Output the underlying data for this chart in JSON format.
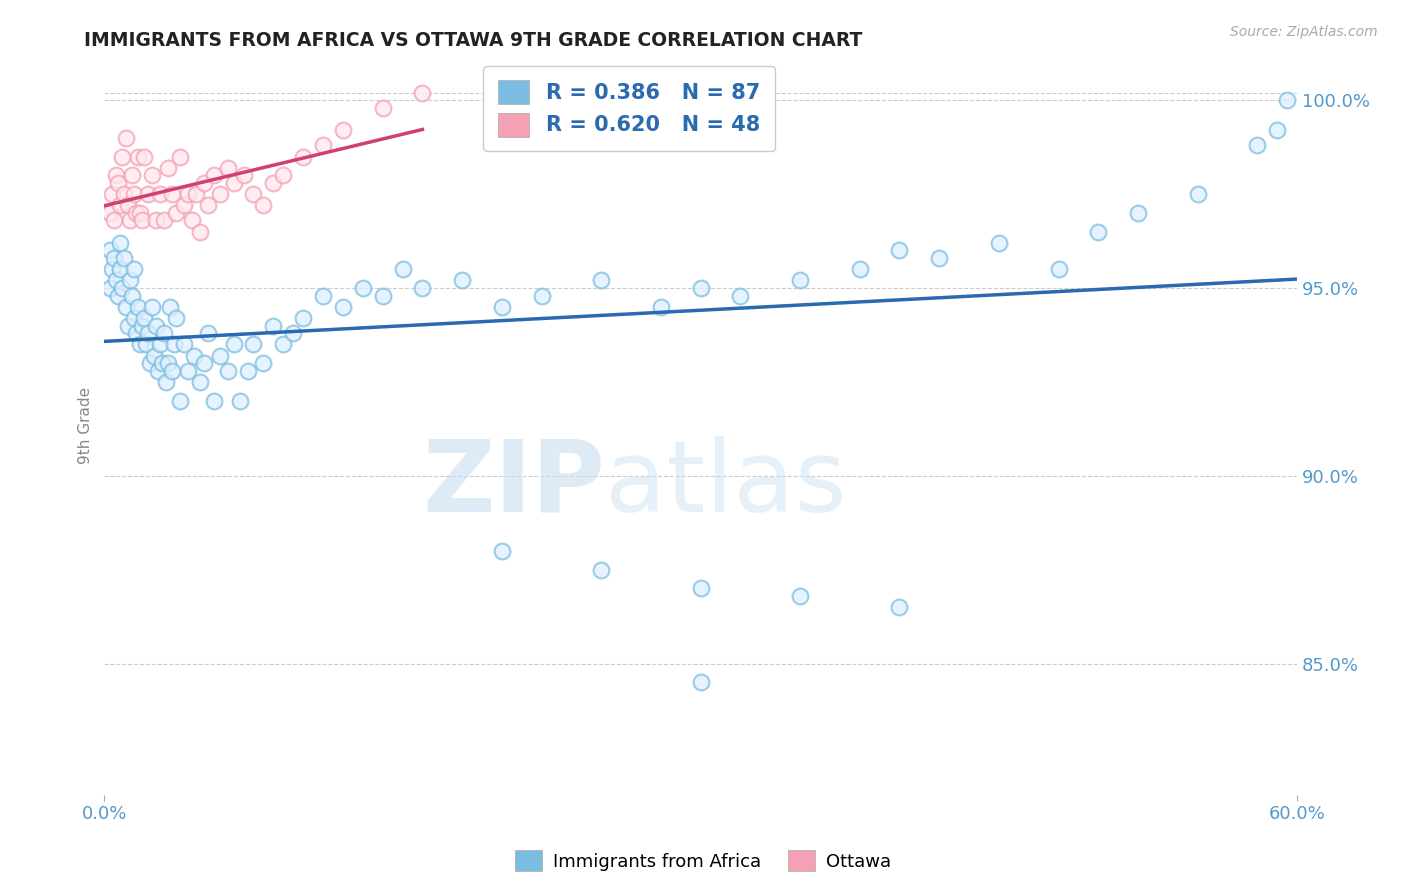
{
  "title": "IMMIGRANTS FROM AFRICA VS OTTAWA 9TH GRADE CORRELATION CHART",
  "source": "Source: ZipAtlas.com",
  "ylabel": "9th Grade",
  "xlim": [
    0.0,
    0.6
  ],
  "ylim": [
    0.815,
    1.012
  ],
  "yticks": [
    0.85,
    0.9,
    0.95,
    1.0
  ],
  "yticklabels": [
    "85.0%",
    "90.0%",
    "95.0%",
    "100.0%"
  ],
  "legend1_R": "0.386",
  "legend1_N": "87",
  "legend2_R": "0.620",
  "legend2_N": "48",
  "legend1_label": "Immigrants from Africa",
  "legend2_label": "Ottawa",
  "blue_color": "#7bbde0",
  "pink_color": "#f4a0b5",
  "trendline_blue": "#2a6ab0",
  "trendline_pink": "#d04070",
  "background_color": "#ffffff",
  "grid_color": "#aaaaaa",
  "title_color": "#222222",
  "axis_label_color": "#888888",
  "tick_color": "#5599cc",
  "legend_R_color": "#2a6ab0",
  "watermark_zip": "ZIP",
  "watermark_atlas": "atlas",
  "blue_x": [
    0.003,
    0.003,
    0.004,
    0.005,
    0.006,
    0.007,
    0.008,
    0.008,
    0.009,
    0.01,
    0.011,
    0.012,
    0.013,
    0.014,
    0.015,
    0.015,
    0.016,
    0.017,
    0.018,
    0.019,
    0.02,
    0.021,
    0.022,
    0.023,
    0.024,
    0.025,
    0.026,
    0.027,
    0.028,
    0.029,
    0.03,
    0.031,
    0.032,
    0.033,
    0.034,
    0.035,
    0.036,
    0.038,
    0.04,
    0.042,
    0.045,
    0.048,
    0.05,
    0.052,
    0.055,
    0.058,
    0.062,
    0.065,
    0.068,
    0.072,
    0.075,
    0.08,
    0.085,
    0.09,
    0.095,
    0.1,
    0.11,
    0.12,
    0.13,
    0.14,
    0.15,
    0.16,
    0.18,
    0.2,
    0.22,
    0.25,
    0.28,
    0.3,
    0.32,
    0.35,
    0.38,
    0.4,
    0.42,
    0.45,
    0.48,
    0.5,
    0.52,
    0.55,
    0.2,
    0.25,
    0.3,
    0.35,
    0.4,
    0.3,
    0.58,
    0.59,
    0.595
  ],
  "blue_y": [
    0.95,
    0.96,
    0.955,
    0.958,
    0.952,
    0.948,
    0.962,
    0.955,
    0.95,
    0.958,
    0.945,
    0.94,
    0.952,
    0.948,
    0.942,
    0.955,
    0.938,
    0.945,
    0.935,
    0.94,
    0.942,
    0.935,
    0.938,
    0.93,
    0.945,
    0.932,
    0.94,
    0.928,
    0.935,
    0.93,
    0.938,
    0.925,
    0.93,
    0.945,
    0.928,
    0.935,
    0.942,
    0.92,
    0.935,
    0.928,
    0.932,
    0.925,
    0.93,
    0.938,
    0.92,
    0.932,
    0.928,
    0.935,
    0.92,
    0.928,
    0.935,
    0.93,
    0.94,
    0.935,
    0.938,
    0.942,
    0.948,
    0.945,
    0.95,
    0.948,
    0.955,
    0.95,
    0.952,
    0.945,
    0.948,
    0.952,
    0.945,
    0.95,
    0.948,
    0.952,
    0.955,
    0.96,
    0.958,
    0.962,
    0.955,
    0.965,
    0.97,
    0.975,
    0.88,
    0.875,
    0.87,
    0.868,
    0.865,
    0.845,
    0.988,
    0.992,
    1.0
  ],
  "pink_x": [
    0.003,
    0.004,
    0.005,
    0.006,
    0.007,
    0.008,
    0.009,
    0.01,
    0.011,
    0.012,
    0.013,
    0.014,
    0.015,
    0.016,
    0.017,
    0.018,
    0.019,
    0.02,
    0.022,
    0.024,
    0.026,
    0.028,
    0.03,
    0.032,
    0.034,
    0.036,
    0.038,
    0.04,
    0.042,
    0.044,
    0.046,
    0.048,
    0.05,
    0.052,
    0.055,
    0.058,
    0.062,
    0.065,
    0.07,
    0.075,
    0.08,
    0.085,
    0.09,
    0.1,
    0.11,
    0.12,
    0.14,
    0.16
  ],
  "pink_y": [
    0.97,
    0.975,
    0.968,
    0.98,
    0.978,
    0.972,
    0.985,
    0.975,
    0.99,
    0.972,
    0.968,
    0.98,
    0.975,
    0.97,
    0.985,
    0.97,
    0.968,
    0.985,
    0.975,
    0.98,
    0.968,
    0.975,
    0.968,
    0.982,
    0.975,
    0.97,
    0.985,
    0.972,
    0.975,
    0.968,
    0.975,
    0.965,
    0.978,
    0.972,
    0.98,
    0.975,
    0.982,
    0.978,
    0.98,
    0.975,
    0.972,
    0.978,
    0.98,
    0.985,
    0.988,
    0.992,
    0.998,
    1.002
  ]
}
